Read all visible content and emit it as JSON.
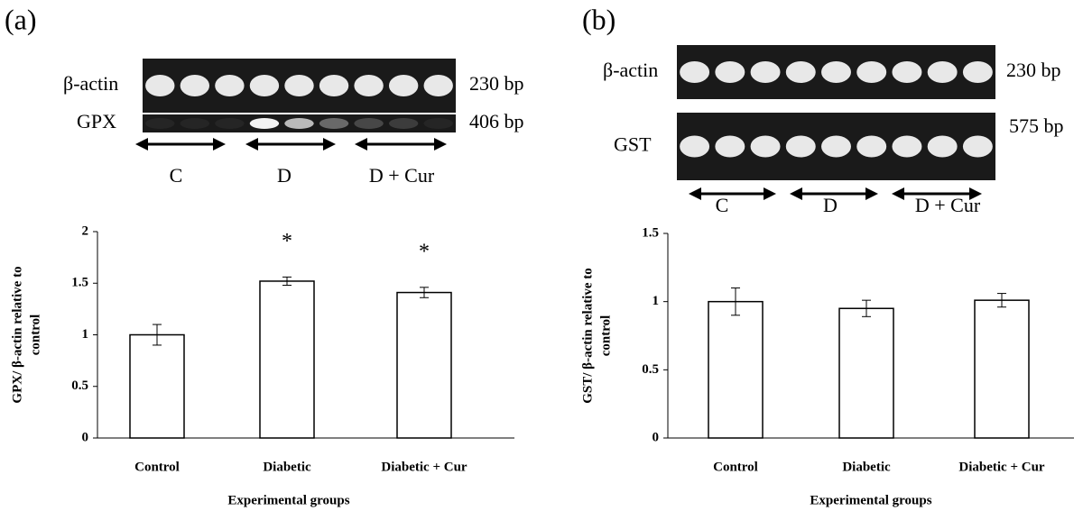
{
  "chart_data": [
    {
      "type": "bar",
      "panel_label": "(a)",
      "gel": {
        "bands": [
          {
            "name": "β-actin",
            "size": "230 bp"
          },
          {
            "name": "GPX",
            "size": "406 bp"
          }
        ],
        "groups": [
          "C",
          "D",
          "D + Cur"
        ]
      },
      "categories": [
        "Control",
        "Diabetic",
        "Diabetic + Cur"
      ],
      "values": [
        1.0,
        1.52,
        1.41
      ],
      "errors": [
        0.1,
        0.04,
        0.05
      ],
      "significance": [
        null,
        "*",
        "*"
      ],
      "color": "#ffffff",
      "xlabel": "Experimental groups",
      "ylabel": [
        "GPX/ β-actin relative to",
        "control"
      ],
      "ylim": [
        0,
        2
      ],
      "yticks": [
        0,
        0.5,
        1,
        1.5,
        2
      ],
      "grid": false
    },
    {
      "type": "bar",
      "panel_label": "(b)",
      "gel": {
        "bands": [
          {
            "name": "β-actin",
            "size": "230 bp"
          },
          {
            "name": "GST",
            "size": "575 bp"
          }
        ],
        "groups": [
          "C",
          "D",
          "D + Cur"
        ]
      },
      "categories": [
        "Control",
        "Diabetic",
        "Diabetic + Cur"
      ],
      "values": [
        1.0,
        0.95,
        1.01
      ],
      "errors": [
        0.1,
        0.06,
        0.05
      ],
      "significance": [
        null,
        null,
        null
      ],
      "color": "#ffffff",
      "xlabel": "Experimental groups",
      "ylabel": [
        "GST/ β-actin relative to",
        "control"
      ],
      "ylim": [
        0,
        1.5
      ],
      "yticks": [
        0,
        0.5,
        1,
        1.5
      ],
      "grid": false
    }
  ]
}
